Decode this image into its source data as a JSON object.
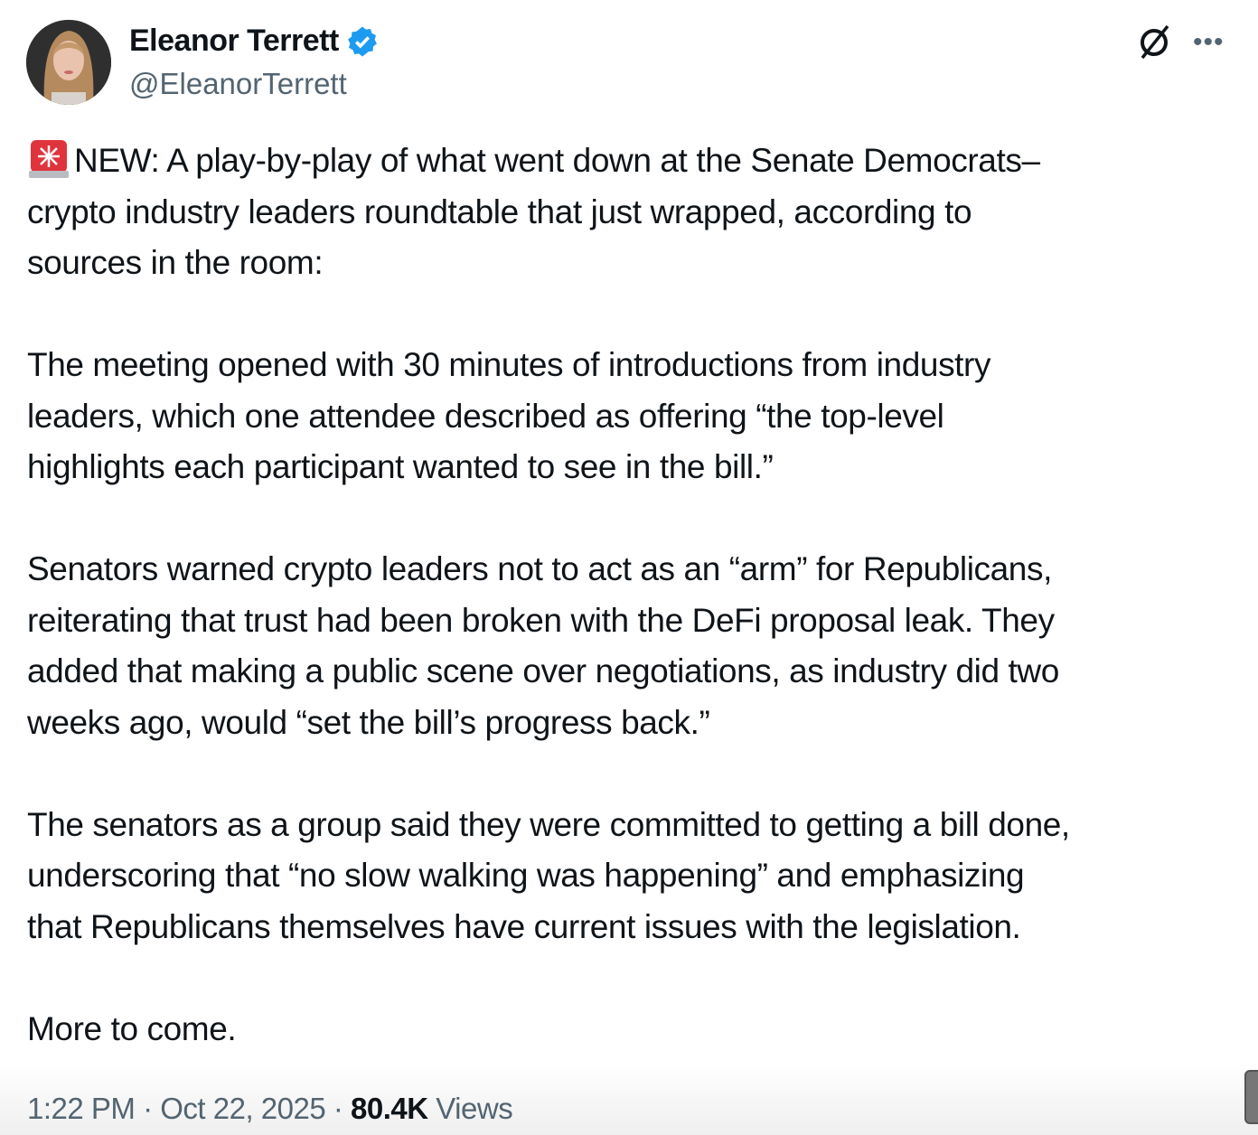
{
  "author": {
    "name": "Eleanor Terrett",
    "handle": "@EleanorTerrett",
    "verified": true,
    "verified_color": "#1d9bf0"
  },
  "icons": {
    "grok": "grok-icon",
    "more": "more-options-icon",
    "alert": "police-light-emoji"
  },
  "post": {
    "paragraphs": [
      [
        "NEW: A play-by-play of what went down at the Senate Democrats–",
        "crypto industry leaders roundtable that just wrapped, according to",
        "sources in the room:"
      ],
      [
        "The meeting opened with 30 minutes of introductions from industry",
        "leaders, which one attendee described as offering “the top-level",
        "highlights each participant wanted to see in the bill.”"
      ],
      [
        "Senators warned crypto leaders not to act as an “arm” for Republicans,",
        "reiterating that trust had been broken with the DeFi proposal leak. They",
        "added that making a public scene over negotiations, as industry did two",
        "weeks ago, would “set the bill’s progress back.”"
      ],
      [
        "The senators as a group said they were committed to getting a bill done,",
        "underscoring that “no slow walking was happening” and emphasizing",
        "that Republicans themselves have current issues with the legislation."
      ],
      [
        "More to come."
      ]
    ]
  },
  "meta": {
    "time": "1:22 PM",
    "separator": " · ",
    "date": "Oct 22, 2025",
    "views_count": "80.4K",
    "views_label": "Views"
  }
}
